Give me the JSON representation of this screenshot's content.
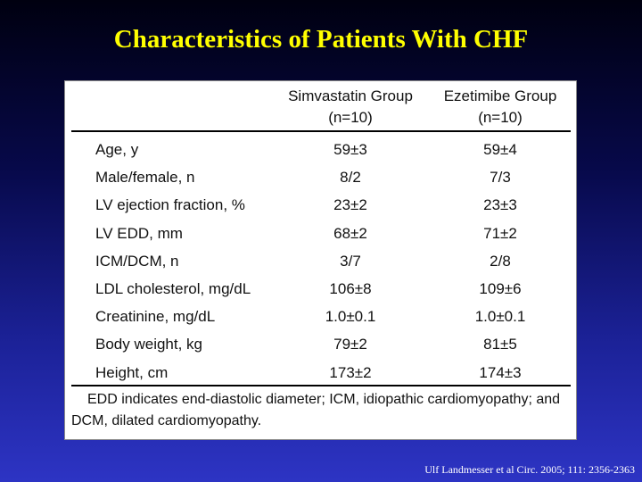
{
  "slide": {
    "title": "Characteristics of Patients With CHF",
    "citation": "Ulf Landmesser et al Circ. 2005; 111: 2356-2363"
  },
  "table": {
    "columns": [
      {
        "name": "Simvastatin Group",
        "n": "(n=10)"
      },
      {
        "name": "Ezetimibe Group",
        "n": "(n=10)"
      }
    ],
    "rows": [
      {
        "label": "Age, y",
        "simvastatin": "59±3",
        "ezetimibe": "59±4"
      },
      {
        "label": "Male/female, n",
        "simvastatin": "8/2",
        "ezetimibe": "7/3"
      },
      {
        "label": "LV ejection fraction, %",
        "simvastatin": "23±2",
        "ezetimibe": "23±3"
      },
      {
        "label": "LV EDD, mm",
        "simvastatin": "68±2",
        "ezetimibe": "71±2"
      },
      {
        "label": "ICM/DCM, n",
        "simvastatin": "3/7",
        "ezetimibe": "2/8"
      },
      {
        "label": "LDL cholesterol, mg/dL",
        "simvastatin": "106±8",
        "ezetimibe": "109±6"
      },
      {
        "label": "Creatinine, mg/dL",
        "simvastatin": "1.0±0.1",
        "ezetimibe": "1.0±0.1"
      },
      {
        "label": "Body weight, kg",
        "simvastatin": "79±2",
        "ezetimibe": "81±5"
      },
      {
        "label": "Height, cm",
        "simvastatin": "173±2",
        "ezetimibe": "174±3"
      }
    ],
    "footnote": "EDD indicates end-diastolic diameter; ICM, idiopathic cardiomyopathy; and DCM, dilated cardiomyopathy."
  }
}
